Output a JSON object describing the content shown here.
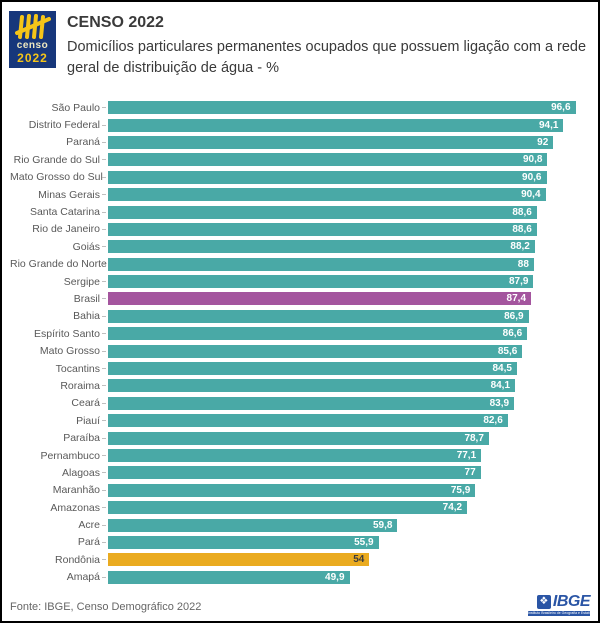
{
  "header": {
    "logo": {
      "name": "censo-2022-logo",
      "word": "censo",
      "year": "2022",
      "bg_color": "#17377B",
      "tally_color": "#F5C518"
    },
    "title": "CENSO 2022",
    "subtitle": "Domicílios particulares permanentes ocupados que possuem ligação com a rede geral de distribuição de água - %"
  },
  "footer": {
    "source": "Fonte: IBGE, Censo Demográfico 2022",
    "ibge_logo": {
      "word": "IBGE",
      "mark_glyph": "❖",
      "tagline": "Instituto Brasileiro de Geografia e Estatística",
      "color": "#2A55A5"
    }
  },
  "colors": {
    "bar_default": "#49A9A6",
    "bar_brasil": "#A4559E",
    "bar_rondonia": "#EAAB20",
    "value_text_default": "#FFFFFF",
    "value_text_on_orange": "#3C3C3C",
    "category_label": "#595959"
  },
  "chart_data": {
    "type": "bar",
    "orientation": "horizontal",
    "title": "Domicílios particulares permanentes ocupados que possuem ligação com a rede geral de distribuição de água - %",
    "xlabel": "",
    "ylabel": "",
    "xlim": [
      0,
      100
    ],
    "grid": false,
    "legend": "none",
    "value_decimal_separator": "comma",
    "categories": [
      "São Paulo",
      "Distrito Federal",
      "Paraná",
      "Rio Grande do Sul",
      "Mato Grosso do Sul",
      "Minas Gerais",
      "Santa Catarina",
      "Rio de Janeiro",
      "Goiás",
      "Rio Grande do Norte",
      "Sergipe",
      "Brasil",
      "Bahia",
      "Espírito Santo",
      "Mato Grosso",
      "Tocantins",
      "Roraima",
      "Ceará",
      "Piauí",
      "Paraíba",
      "Pernambuco",
      "Alagoas",
      "Maranhão",
      "Amazonas",
      "Acre",
      "Pará",
      "Rondônia",
      "Amapá"
    ],
    "values": [
      96.6,
      94.1,
      92,
      90.8,
      90.6,
      90.4,
      88.6,
      88.6,
      88.2,
      88,
      87.9,
      87.4,
      86.9,
      86.6,
      85.6,
      84.5,
      84.1,
      83.9,
      82.6,
      78.7,
      77.1,
      77,
      75.9,
      74.2,
      59.8,
      55.9,
      54,
      49.9
    ],
    "display_values": [
      "96,6",
      "94,1",
      "92",
      "90,8",
      "90,6",
      "90,4",
      "88,6",
      "88,6",
      "88,2",
      "88",
      "87,9",
      "87,4",
      "86,9",
      "86,6",
      "85,6",
      "84,5",
      "84,1",
      "83,9",
      "82,6",
      "78,7",
      "77,1",
      "77",
      "75,9",
      "74,2",
      "59,8",
      "55,9",
      "54",
      "49,9"
    ],
    "highlights": {
      "Brasil": "brasil",
      "Rondônia": "rondonia"
    }
  }
}
